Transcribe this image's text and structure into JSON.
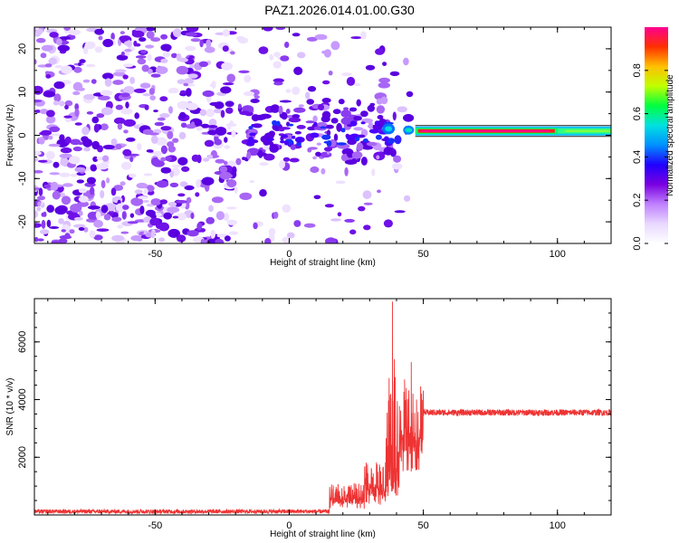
{
  "title": "PAZ1.2026.014.01.00.G30",
  "chart_data": [
    {
      "type": "heatmap",
      "name": "spectrogram",
      "xlabel": "Height of straight line (km)",
      "ylabel": "Frequency (Hz)",
      "xlim": [
        -95,
        120
      ],
      "ylim": [
        -25,
        25
      ],
      "xticks": [
        -50,
        0,
        50,
        100
      ],
      "yticks": [
        20,
        10,
        0,
        -10,
        -20
      ],
      "colorbar": {
        "label": "Normalized spectral amplitude",
        "range": [
          0,
          1
        ],
        "ticks": [
          0.0,
          0.2,
          0.4,
          0.6,
          0.8
        ],
        "colors": [
          "#ffffff",
          "#e8d8ff",
          "#c080ff",
          "#7a00e0",
          "#2000ff",
          "#0090ff",
          "#00e0e0",
          "#00ff40",
          "#c0ff00",
          "#ffc000",
          "#ff3000",
          "#ff0090"
        ]
      },
      "features": [
        {
          "x_range": [
            -95,
            -20
          ],
          "freq_range": [
            -25,
            25
          ],
          "description": "scattered low-amplitude noise",
          "amplitude": 0.15
        },
        {
          "x_range": [
            -20,
            35
          ],
          "freq_range": [
            -8,
            12
          ],
          "description": "noise with concentrated band around 0 Hz",
          "amplitude": 0.2
        },
        {
          "x_range": [
            35,
            48
          ],
          "freq_range": [
            -2,
            5
          ],
          "description": "transition band",
          "amplitude": 0.5
        },
        {
          "x_range": [
            48,
            100
          ],
          "freq": 1,
          "description": "strong narrow carrier line",
          "amplitude": 0.95
        },
        {
          "x_range": [
            100,
            120
          ],
          "freq": 1,
          "description": "carrier line widening",
          "amplitude": 0.6
        }
      ]
    },
    {
      "type": "line",
      "name": "snr",
      "xlabel": "Height of straight line (km)",
      "ylabel": "SNR (10 * v/v)",
      "xlim": [
        -95,
        120
      ],
      "ylim": [
        0,
        7500
      ],
      "xticks": [
        -50,
        0,
        50,
        100
      ],
      "yticks": [
        2000,
        4000,
        6000
      ],
      "color": "#ee3333",
      "series": [
        {
          "name": "SNR",
          "segments": [
            {
              "x_range": [
                -95,
                15
              ],
              "level": 120,
              "jitter": 70
            },
            {
              "x_range": [
                15,
                28
              ],
              "level": 650,
              "jitter": 450
            },
            {
              "x_range": [
                28,
                36
              ],
              "level": 1100,
              "jitter": 750
            },
            {
              "x_range": [
                36,
                41
              ],
              "level": 2200,
              "jitter": 2600
            },
            {
              "x_range": [
                41,
                50
              ],
              "level": 3000,
              "jitter": 1500
            },
            {
              "x_range": [
                50,
                120
              ],
              "level": 3550,
              "jitter": 110
            }
          ],
          "peaks": [
            [
              38.5,
              7400
            ],
            [
              39.2,
              5400
            ],
            [
              45.5,
              5300
            ],
            [
              43,
              4700
            ]
          ]
        }
      ]
    }
  ]
}
